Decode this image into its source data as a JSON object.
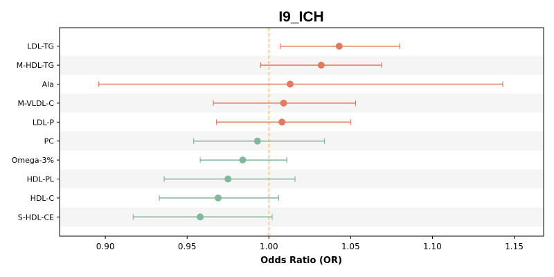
{
  "chart_data": {
    "type": "forest",
    "title": "I9_ICH",
    "xlabel": "Odds Ratio (OR)",
    "ylabel": "",
    "xlim": [
      0.872,
      1.168
    ],
    "xticks": [
      0.9,
      0.95,
      1.0,
      1.05,
      1.1,
      1.15
    ],
    "xtick_labels": [
      "0.90",
      "0.95",
      "1.00",
      "1.05",
      "1.10",
      "1.15"
    ],
    "reference_line": 1.0,
    "grid": false,
    "colors": {
      "positive": "#e07b5f",
      "negative": "#7fb89a",
      "reference": "#f0c27a",
      "stripe": "#f5f5f5"
    },
    "rows": [
      {
        "label": "LDL-TG",
        "or": 1.043,
        "lo": 1.007,
        "hi": 1.08,
        "direction": "positive"
      },
      {
        "label": "M-HDL-TG",
        "or": 1.032,
        "lo": 0.995,
        "hi": 1.069,
        "direction": "positive"
      },
      {
        "label": "Ala",
        "or": 1.013,
        "lo": 0.896,
        "hi": 1.143,
        "direction": "positive"
      },
      {
        "label": "M-VLDL-C",
        "or": 1.009,
        "lo": 0.966,
        "hi": 1.053,
        "direction": "positive"
      },
      {
        "label": "LDL-P",
        "or": 1.008,
        "lo": 0.968,
        "hi": 1.05,
        "direction": "positive"
      },
      {
        "label": "PC",
        "or": 0.993,
        "lo": 0.954,
        "hi": 1.034,
        "direction": "negative"
      },
      {
        "label": "Omega-3%",
        "or": 0.984,
        "lo": 0.958,
        "hi": 1.011,
        "direction": "negative"
      },
      {
        "label": "HDL-PL",
        "or": 0.975,
        "lo": 0.936,
        "hi": 1.016,
        "direction": "negative"
      },
      {
        "label": "HDL-C",
        "or": 0.969,
        "lo": 0.933,
        "hi": 1.006,
        "direction": "negative"
      },
      {
        "label": "S-HDL-CE",
        "or": 0.958,
        "lo": 0.917,
        "hi": 1.002,
        "direction": "negative"
      }
    ]
  }
}
